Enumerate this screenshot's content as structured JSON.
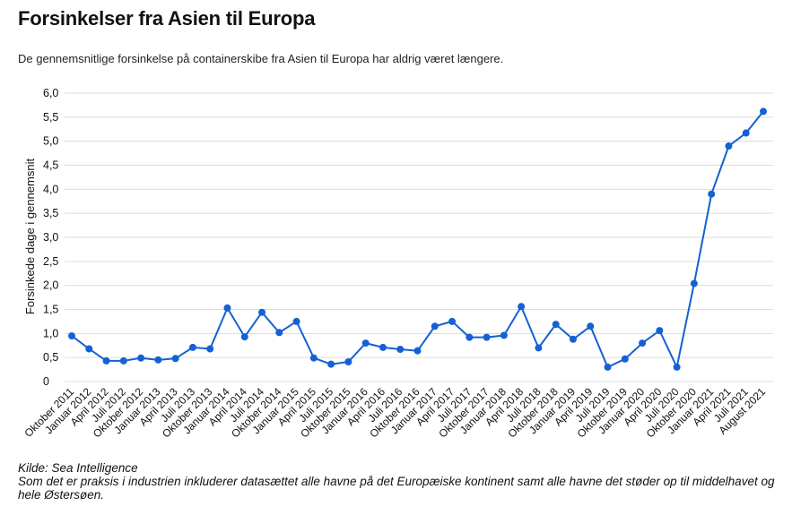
{
  "chart_data": {
    "type": "line",
    "title": "Forsinkelser fra Asien til Europa",
    "subtitle": "De gennemsnitlige forsinkelse på containerskibe fra Asien til Europa har aldrig været længere.",
    "ylabel": "Forsinkede dage i gennemsnit",
    "xlabel": "",
    "ylim": [
      0,
      6
    ],
    "yticks": [
      "0",
      "0,5",
      "1,0",
      "1,5",
      "2,0",
      "2,5",
      "3,0",
      "3,5",
      "4,0",
      "4,5",
      "5,0",
      "5,5",
      "6,0"
    ],
    "grid": true,
    "legend": "none",
    "line_color": "#1560d4",
    "categories": [
      "Oktober 2011",
      "Januar 2012",
      "April 2012",
      "Juli 2012",
      "Oktober 2012",
      "Januar 2013",
      "April 2013",
      "Juli 2013",
      "Oktober 2013",
      "Januar 2014",
      "April 2014",
      "Juli 2014",
      "Oktober 2014",
      "Januar 2015",
      "April 2015",
      "Juli 2015",
      "Oktober 2015",
      "Januar 2016",
      "April 2016",
      "Juli 2016",
      "Oktober 2016",
      "Januar 2017",
      "April 2017",
      "Juli 2017",
      "Oktober 2017",
      "Januar 2018",
      "April 2018",
      "Juli 2018",
      "Oktober 2018",
      "Januar 2019",
      "April 2019",
      "Juli 2019",
      "Oktober 2019",
      "Januar 2020",
      "April 2020",
      "Juli 2020",
      "Oktober 2020",
      "Januar 2021",
      "April 2021",
      "Juli 2021",
      "August 2021"
    ],
    "values": [
      0.95,
      0.68,
      0.43,
      0.43,
      0.49,
      0.45,
      0.48,
      0.71,
      0.68,
      1.53,
      0.93,
      1.44,
      1.02,
      1.25,
      0.49,
      0.36,
      0.41,
      0.8,
      0.71,
      0.67,
      0.64,
      1.15,
      1.25,
      0.92,
      0.92,
      0.96,
      1.56,
      0.7,
      1.19,
      0.88,
      1.15,
      0.3,
      0.47,
      0.8,
      1.06,
      0.3,
      2.04,
      3.9,
      4.9,
      5.17,
      5.62
    ]
  },
  "footer": {
    "source": "Kilde: Sea Intelligence",
    "note": "Som det er praksis i industrien inkluderer datasættet alle havne på det Europæiske kontinent samt alle havne det støder op til middelhavet og hele Østersøen."
  }
}
